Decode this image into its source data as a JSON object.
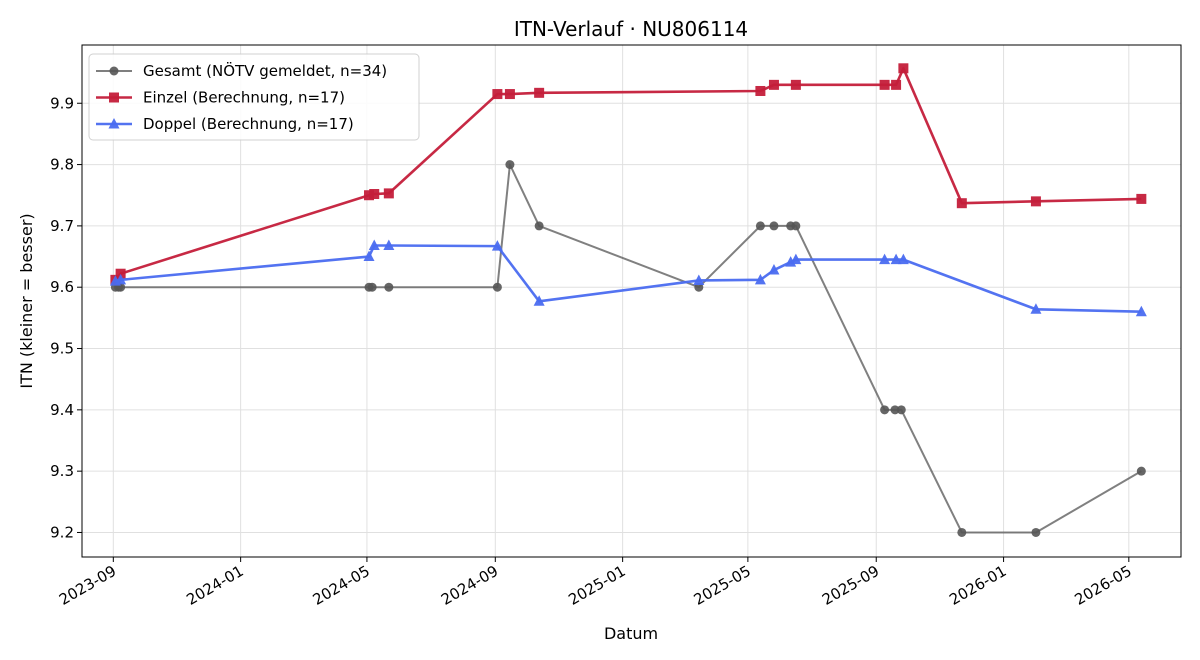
{
  "chart_data": {
    "type": "line",
    "title": "ITN-Verlauf · NU806114",
    "xlabel": "Datum",
    "ylabel": "ITN  (kleiner = besser)",
    "x_ticks": [
      "2023-09",
      "2024-01",
      "2024-05",
      "2024-09",
      "2025-01",
      "2025-05",
      "2025-09",
      "2026-01",
      "2026-05"
    ],
    "y_ticks": [
      "9.2",
      "9.3",
      "9.4",
      "9.5",
      "9.6",
      "9.7",
      "9.8",
      "9.9"
    ],
    "xlim": [
      "2023-08-02",
      "2026-06-20"
    ],
    "ylim": [
      9.16,
      9.995
    ],
    "grid": true,
    "legend_position": "top-left",
    "series": [
      {
        "name": "Gesamt (NÖTV gemeldet, n=34)",
        "color": "#555555",
        "marker": "circle",
        "points": [
          [
            "2023-09-03",
            9.6
          ],
          [
            "2023-09-06",
            9.6
          ],
          [
            "2023-09-08",
            9.6
          ],
          [
            "2024-05-03",
            9.6
          ],
          [
            "2024-05-06",
            9.6
          ],
          [
            "2024-05-22",
            9.6
          ],
          [
            "2024-09-03",
            9.6
          ],
          [
            "2024-09-15",
            9.8
          ],
          [
            "2024-10-13",
            9.7
          ],
          [
            "2025-03-15",
            9.6
          ],
          [
            "2025-05-13",
            9.7
          ],
          [
            "2025-05-26",
            9.7
          ],
          [
            "2025-06-11",
            9.7
          ],
          [
            "2025-06-16",
            9.7
          ],
          [
            "2025-09-09",
            9.4
          ],
          [
            "2025-09-19",
            9.4
          ],
          [
            "2025-09-25",
            9.4
          ],
          [
            "2025-11-22",
            9.2
          ],
          [
            "2026-02-01",
            9.2
          ],
          [
            "2026-05-13",
            9.3
          ]
        ]
      },
      {
        "name": "Einzel (Berechnung, n=17)",
        "color": "#c41e3a",
        "marker": "square",
        "points": [
          [
            "2023-09-03",
            9.612
          ],
          [
            "2023-09-08",
            9.622
          ],
          [
            "2024-05-03",
            9.75
          ],
          [
            "2024-05-08",
            9.752
          ],
          [
            "2024-05-22",
            9.753
          ],
          [
            "2024-09-03",
            9.915
          ],
          [
            "2024-09-15",
            9.915
          ],
          [
            "2024-10-13",
            9.917
          ],
          [
            "2025-05-13",
            9.92
          ],
          [
            "2025-05-26",
            9.93
          ],
          [
            "2025-06-16",
            9.93
          ],
          [
            "2025-09-09",
            9.93
          ],
          [
            "2025-09-20",
            9.93
          ],
          [
            "2025-09-27",
            9.957
          ],
          [
            "2025-11-22",
            9.737
          ],
          [
            "2026-02-01",
            9.74
          ],
          [
            "2026-05-13",
            9.744
          ]
        ]
      },
      {
        "name": "Doppel (Berechnung, n=17)",
        "color": "#4a6cf0",
        "marker": "triangle",
        "points": [
          [
            "2023-09-03",
            9.61
          ],
          [
            "2023-09-08",
            9.612
          ],
          [
            "2024-05-03",
            9.65
          ],
          [
            "2024-05-08",
            9.668
          ],
          [
            "2024-05-22",
            9.668
          ],
          [
            "2024-09-03",
            9.667
          ],
          [
            "2024-10-13",
            9.577
          ],
          [
            "2025-03-15",
            9.611
          ],
          [
            "2025-05-13",
            9.612
          ],
          [
            "2025-05-26",
            9.628
          ],
          [
            "2025-06-11",
            9.641
          ],
          [
            "2025-06-16",
            9.645
          ],
          [
            "2025-09-09",
            9.645
          ],
          [
            "2025-09-20",
            9.645
          ],
          [
            "2025-09-27",
            9.645
          ],
          [
            "2026-02-01",
            9.564
          ],
          [
            "2026-05-13",
            9.56
          ]
        ]
      }
    ]
  }
}
